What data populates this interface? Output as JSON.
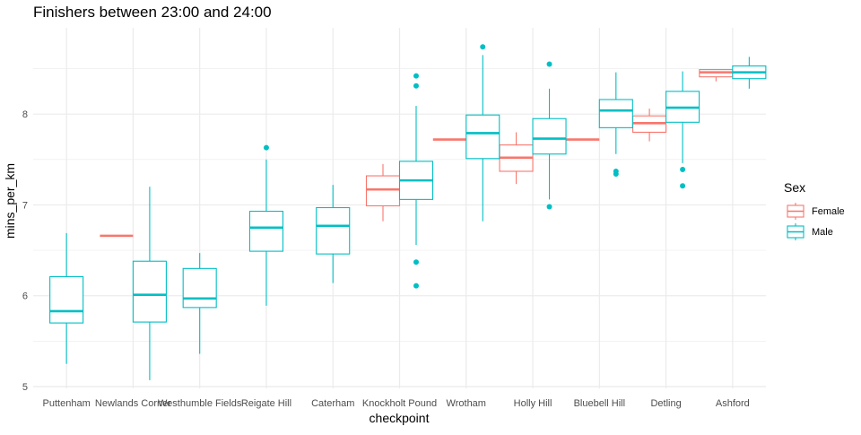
{
  "chart_data": {
    "type": "boxplot",
    "title": "Finishers between 23:00 and 24:00",
    "xlabel": "checkpoint",
    "ylabel": "mins_per_km",
    "ylim": [
      4.98,
      8.95
    ],
    "yticks": [
      5,
      6,
      7,
      8
    ],
    "grid": true,
    "categories": [
      "Puttenham",
      "Newlands Corner",
      "Westhumble Fields",
      "Reigate Hill",
      "Caterham",
      "Knockholt Pound",
      "Wrotham",
      "Holly Hill",
      "Bluebell Hill",
      "Detling",
      "Ashford"
    ],
    "legend": {
      "title": "Sex",
      "position": "right",
      "entries": [
        {
          "name": "Female",
          "color": "#F8766D"
        },
        {
          "name": "Male",
          "color": "#00BFC4"
        }
      ]
    },
    "series": [
      {
        "name": "Female",
        "color": "#F8766D",
        "boxes": [
          {
            "category": "Newlands Corner",
            "whisker_low": 6.66,
            "q1": 6.66,
            "median": 6.66,
            "q3": 6.66,
            "whisker_high": 6.66,
            "outliers": []
          },
          {
            "category": "Knockholt Pound",
            "whisker_low": 6.82,
            "q1": 6.99,
            "median": 7.17,
            "q3": 7.32,
            "whisker_high": 7.45,
            "outliers": []
          },
          {
            "category": "Wrotham",
            "whisker_low": 7.72,
            "q1": 7.72,
            "median": 7.72,
            "q3": 7.72,
            "whisker_high": 7.72,
            "outliers": []
          },
          {
            "category": "Holly Hill",
            "whisker_low": 7.23,
            "q1": 7.37,
            "median": 7.52,
            "q3": 7.66,
            "whisker_high": 7.8,
            "outliers": []
          },
          {
            "category": "Bluebell Hill",
            "whisker_low": 7.72,
            "q1": 7.72,
            "median": 7.72,
            "q3": 7.72,
            "whisker_high": 7.72,
            "outliers": []
          },
          {
            "category": "Detling",
            "whisker_low": 7.7,
            "q1": 7.8,
            "median": 7.9,
            "q3": 7.98,
            "whisker_high": 8.06,
            "outliers": []
          },
          {
            "category": "Ashford",
            "whisker_low": 8.36,
            "q1": 8.41,
            "median": 8.46,
            "q3": 8.49,
            "whisker_high": 8.49,
            "outliers": []
          }
        ]
      },
      {
        "name": "Male",
        "color": "#00BFC4",
        "boxes": [
          {
            "category": "Puttenham",
            "whisker_low": 5.25,
            "q1": 5.7,
            "median": 5.83,
            "q3": 6.21,
            "whisker_high": 6.69,
            "outliers": []
          },
          {
            "category": "Newlands Corner",
            "whisker_low": 5.07,
            "q1": 5.71,
            "median": 6.01,
            "q3": 6.38,
            "whisker_high": 7.2,
            "outliers": []
          },
          {
            "category": "Westhumble Fields",
            "whisker_low": 5.36,
            "q1": 5.87,
            "median": 5.97,
            "q3": 6.3,
            "whisker_high": 6.47,
            "outliers": []
          },
          {
            "category": "Reigate Hill",
            "whisker_low": 5.89,
            "q1": 6.49,
            "median": 6.75,
            "q3": 6.93,
            "whisker_high": 7.5,
            "outliers": [
              7.63
            ]
          },
          {
            "category": "Caterham",
            "whisker_low": 6.14,
            "q1": 6.46,
            "median": 6.77,
            "q3": 6.97,
            "whisker_high": 7.22,
            "outliers": []
          },
          {
            "category": "Knockholt Pound",
            "whisker_low": 6.56,
            "q1": 7.06,
            "median": 7.27,
            "q3": 7.48,
            "whisker_high": 8.09,
            "outliers": [
              6.11,
              6.37,
              8.31,
              8.42
            ]
          },
          {
            "category": "Wrotham",
            "whisker_low": 6.82,
            "q1": 7.51,
            "median": 7.79,
            "q3": 7.99,
            "whisker_high": 8.65,
            "outliers": [
              8.74
            ]
          },
          {
            "category": "Holly Hill",
            "whisker_low": 7.06,
            "q1": 7.56,
            "median": 7.73,
            "q3": 7.95,
            "whisker_high": 8.28,
            "outliers": [
              6.98,
              8.55
            ]
          },
          {
            "category": "Bluebell Hill",
            "whisker_low": 7.56,
            "q1": 7.85,
            "median": 8.04,
            "q3": 8.16,
            "whisker_high": 8.46,
            "outliers": [
              7.34,
              7.37
            ]
          },
          {
            "category": "Detling",
            "whisker_low": 7.46,
            "q1": 7.91,
            "median": 8.07,
            "q3": 8.25,
            "whisker_high": 8.47,
            "outliers": [
              7.21,
              7.39
            ]
          },
          {
            "category": "Ashford",
            "whisker_low": 8.28,
            "q1": 8.39,
            "median": 8.46,
            "q3": 8.53,
            "whisker_high": 8.63,
            "outliers": []
          }
        ]
      }
    ]
  }
}
